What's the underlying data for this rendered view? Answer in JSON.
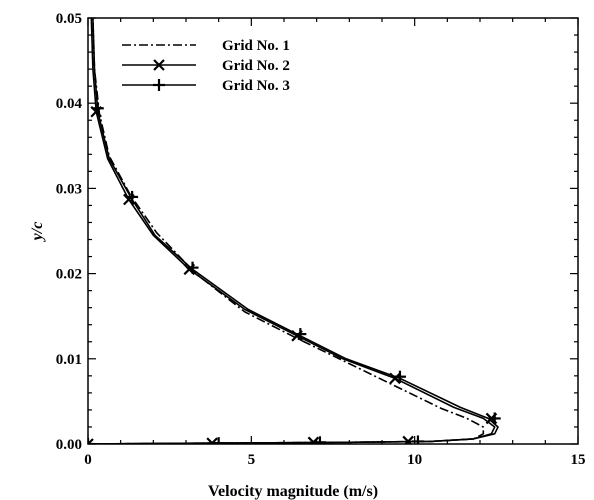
{
  "chart_data": {
    "type": "line",
    "xlabel": "Velocity magnitude (m/s)",
    "ylabel": "y/c",
    "xlim": [
      0,
      15
    ],
    "ylim": [
      0,
      0.05
    ],
    "xticks": [
      0,
      5,
      10,
      15
    ],
    "xtick_labels": [
      "0",
      "5",
      "10",
      "15"
    ],
    "yticks": [
      0,
      0.01,
      0.02,
      0.03,
      0.04,
      0.05
    ],
    "ytick_labels": [
      "0.00",
      "0.01",
      "0.02",
      "0.03",
      "0.04",
      "0.05"
    ],
    "grid": false,
    "legend_position": "top-left",
    "series": [
      {
        "name": "Grid No. 1",
        "style": "dash-dot",
        "marker": "none",
        "color": "#000000",
        "points": [
          [
            0,
            0
          ],
          [
            4,
            0.0001
          ],
          [
            8,
            0.0002
          ],
          [
            10.5,
            0.0003
          ],
          [
            11.8,
            0.0006
          ],
          [
            12.1,
            0.0012
          ],
          [
            12.1,
            0.002
          ],
          [
            11.6,
            0.003
          ],
          [
            10.8,
            0.0042
          ],
          [
            9.3,
            0.007
          ],
          [
            7.8,
            0.0098
          ],
          [
            6.4,
            0.0124
          ],
          [
            4.8,
            0.0155
          ],
          [
            3.3,
            0.02
          ],
          [
            2.1,
            0.0248
          ],
          [
            1.3,
            0.0292
          ],
          [
            0.65,
            0.0338
          ],
          [
            0.35,
            0.0388
          ],
          [
            0.2,
            0.044
          ],
          [
            0.15,
            0.05
          ]
        ]
      },
      {
        "name": "Grid No. 2",
        "style": "solid",
        "marker": "x",
        "color": "#000000",
        "points": [
          [
            0,
            0
          ],
          [
            4,
            0.0001
          ],
          [
            8,
            0.0002
          ],
          [
            10.5,
            0.0003
          ],
          [
            11.8,
            0.0006
          ],
          [
            12.35,
            0.0012
          ],
          [
            12.45,
            0.002
          ],
          [
            12.1,
            0.003
          ],
          [
            11.2,
            0.0043
          ],
          [
            9.4,
            0.0077
          ],
          [
            7.8,
            0.01
          ],
          [
            6.4,
            0.0127
          ],
          [
            4.8,
            0.0158
          ],
          [
            3.1,
            0.0205
          ],
          [
            2.0,
            0.0245
          ],
          [
            1.25,
            0.0287
          ],
          [
            0.6,
            0.0335
          ],
          [
            0.25,
            0.039
          ],
          [
            0.15,
            0.044
          ],
          [
            0.1,
            0.05
          ]
        ],
        "marker_points": [
          [
            0,
            0
          ],
          [
            3.8,
            0.0001
          ],
          [
            6.9,
            0.0002
          ],
          [
            9.8,
            0.0003
          ],
          [
            12.35,
            0.003
          ],
          [
            9.4,
            0.0077
          ],
          [
            6.4,
            0.0127
          ],
          [
            3.1,
            0.0205
          ],
          [
            1.25,
            0.0287
          ],
          [
            0.25,
            0.039
          ]
        ]
      },
      {
        "name": "Grid No. 3",
        "style": "solid",
        "marker": "+",
        "color": "#000000",
        "points": [
          [
            0,
            0
          ],
          [
            4,
            0.0001
          ],
          [
            8,
            0.0002
          ],
          [
            10.5,
            0.0003
          ],
          [
            11.8,
            0.0006
          ],
          [
            12.45,
            0.0012
          ],
          [
            12.55,
            0.002
          ],
          [
            12.25,
            0.003
          ],
          [
            11.4,
            0.0043
          ],
          [
            9.55,
            0.0077
          ],
          [
            7.9,
            0.01
          ],
          [
            6.5,
            0.0127
          ],
          [
            4.9,
            0.0158
          ],
          [
            3.2,
            0.0205
          ],
          [
            2.05,
            0.0245
          ],
          [
            1.35,
            0.0287
          ],
          [
            0.65,
            0.0335
          ],
          [
            0.3,
            0.039
          ],
          [
            0.2,
            0.044
          ],
          [
            0.15,
            0.05
          ]
        ],
        "marker_points": [
          [
            0,
            0
          ],
          [
            4.0,
            0.0001
          ],
          [
            7.1,
            0.0002
          ],
          [
            10.1,
            0.0003
          ],
          [
            12.45,
            0.003
          ],
          [
            9.55,
            0.0079
          ],
          [
            6.5,
            0.0129
          ],
          [
            3.2,
            0.0207
          ],
          [
            1.35,
            0.029
          ],
          [
            0.3,
            0.0394
          ]
        ]
      }
    ]
  }
}
